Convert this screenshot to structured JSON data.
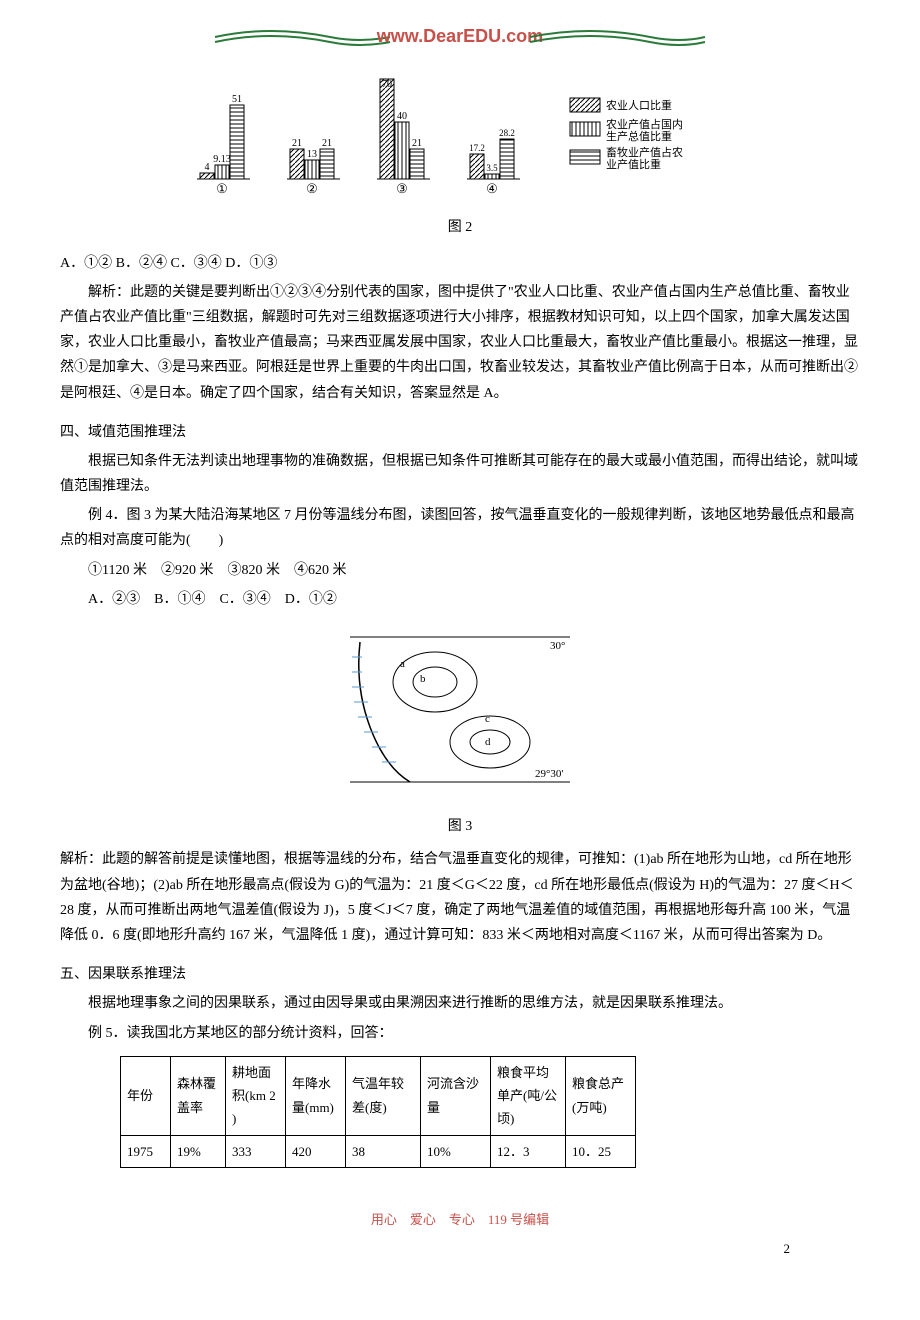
{
  "header": {
    "url": "www.DearEDU.com",
    "flourish_color": "#2a7a3a"
  },
  "chart2": {
    "groups": [
      {
        "label": "①",
        "vals": [
          "4",
          "9.1",
          "",
          "51"
        ],
        "display_vals": [
          "4",
          "9.13",
          "",
          "51"
        ]
      },
      {
        "label": "②",
        "vals": [
          "21",
          "",
          "13",
          "21"
        ],
        "display_vals": [
          "21",
          "",
          "13",
          "21"
        ]
      },
      {
        "label": "③",
        "vals": [
          "70",
          "40",
          "",
          "21"
        ],
        "display_vals": [
          "70",
          "40",
          "",
          "21"
        ]
      },
      {
        "label": "④",
        "vals": [
          "",
          "17.2",
          "3.5",
          "28.2"
        ],
        "display_vals": [
          "",
          "17.2",
          "3.5",
          "28.2"
        ]
      }
    ],
    "legend": [
      {
        "label": "农业人口比重",
        "pattern": "diag"
      },
      {
        "label": "农业产值占国内生产总值比重",
        "pattern": "vert"
      },
      {
        "label": "畜牧业产值占农业产值比重",
        "pattern": "horiz"
      }
    ],
    "caption": "图 2",
    "bar_colors": {
      "border": "#000000",
      "fill": "#ffffff"
    },
    "height_scale": 1.0
  },
  "q2": {
    "options": "A．①② B．②④ C．③④ D．①③",
    "analysis": "解析：此题的关键是要判断出①②③④分别代表的国家，图中提供了\"农业人口比重、农业产值占国内生产总值比重、畜牧业产值占农业产值比重\"三组数据，解题时可先对三组数据逐项进行大小排序，根据教材知识可知，以上四个国家，加拿大属发达国家，农业人口比重最小，畜牧业产值最高；马来西亚属发展中国家，农业人口比重最大，畜牧业产值比重最小。根据这一推理，显然①是加拿大、③是马来西亚。阿根廷是世界上重要的牛肉出口国，牧畜业较发达，其畜牧业产值比例高于日本，从而可推断出②是阿根廷、④是日本。确定了四个国家，结合有关知识，答案显然是 A。"
  },
  "section4": {
    "title": "四、域值范围推理法",
    "intro": "根据已知条件无法判读出地理事物的准确数据，但根据已知条件可推断其可能存在的最大或最小值范围，而得出结论，就叫域值范围推理法。",
    "example_intro": "例 4．图 3 为某大陆沿海某地区 7 月份等温线分布图，读图回答，按气温垂直变化的一般规律判断，该地区地势最低点和最高点的相对高度可能为(　　)",
    "choices_line": "①1120 米　②920 米　③820 米　④620 米",
    "options_line": "A．②③　B．①④　C．③④　D．①②",
    "fig3": {
      "caption": "图 3",
      "lat_top": "30°",
      "lat_bottom": "29°30'",
      "isotherm_labels": [
        "a",
        "b",
        "c",
        "d"
      ],
      "line_color": "#000000",
      "sea_hatch_color": "#5a9bd5"
    },
    "analysis": "解析：此题的解答前提是读懂地图，根据等温线的分布，结合气温垂直变化的规律，可推知：(1)ab 所在地形为山地，cd 所在地形为盆地(谷地)；(2)ab 所在地形最高点(假设为 G)的气温为：21 度＜G＜22 度，cd 所在地形最低点(假设为 H)的气温为：27 度＜H＜28 度，从而可推断出两地气温差值(假设为 J)，5 度＜J＜7 度，确定了两地气温差值的域值范围，再根据地形每升高 100 米，气温降低 0．6 度(即地形升高约 167 米，气温降低 1 度)，通过计算可知：833 米＜两地相对高度＜1167 米，从而可得出答案为 D。"
  },
  "section5": {
    "title": "五、因果联系推理法",
    "intro": "根据地理事象之间的因果联系，通过由因导果或由果溯因来进行推断的思维方法，就是因果联系推理法。",
    "example_intro": "例 5．读我国北方某地区的部分统计资料，回答：",
    "table": {
      "columns": [
        "年份",
        "森林覆盖率",
        "耕地面积(km 2 )",
        "年降水量(mm)",
        "气温年较差(度)",
        "河流含沙量",
        "粮食平均单产(吨/公顷)",
        "粮食总产(万吨)"
      ],
      "rows": [
        [
          "1975",
          "19%",
          "333",
          "420",
          "38",
          "10%",
          "12．3",
          "10．25"
        ]
      ],
      "col_widths": [
        "50",
        "55",
        "60",
        "60",
        "75",
        "70",
        "75",
        "70"
      ]
    }
  },
  "footer": {
    "text": "用心　爱心　专心　119 号编辑",
    "page": "2",
    "color": "#c8504a"
  }
}
